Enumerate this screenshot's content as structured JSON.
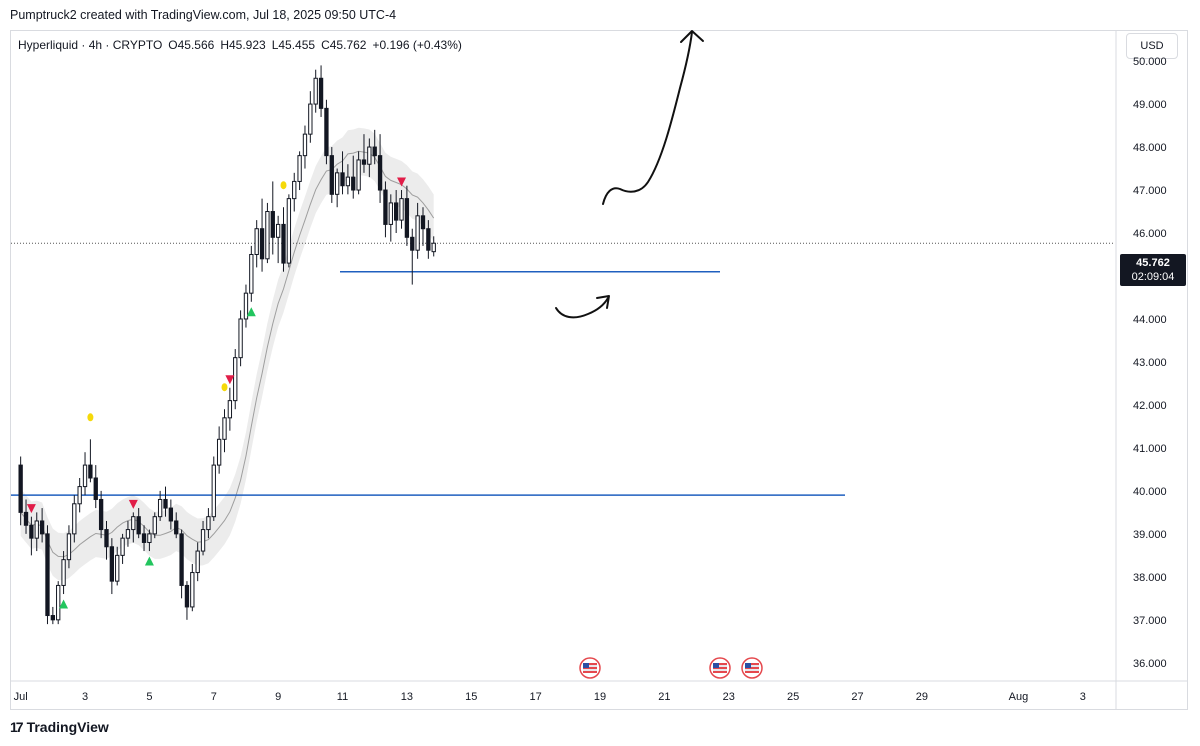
{
  "header": {
    "attribution": "Pumptruck2 created with TradingView.com, Jul 18, 2025 09:50 UTC-4"
  },
  "legend": {
    "symbol": "Hyperliquid · 4h · CRYPTO",
    "open": "O45.566",
    "high": "H45.923",
    "low": "L45.455",
    "close": "C45.762",
    "change": "+0.196 (+0.43%)"
  },
  "currency": "USD",
  "footer": {
    "brand": "TradingView"
  },
  "price_tag": {
    "price": "45.762",
    "countdown": "02:09:04"
  },
  "colors": {
    "candle": "#131722",
    "support_line": "#1f5fbf",
    "up_marker": "#22c55e",
    "down_marker": "#e11d48",
    "yellow_dot": "#f5d90a",
    "band_fill": "#ececec",
    "ma_line": "#9e9e9e"
  },
  "chart_data": {
    "type": "candlestick",
    "timeframe": "4h",
    "ylim": [
      35.6,
      50.7
    ],
    "y_ticks": [
      36,
      37,
      38,
      39,
      40,
      41,
      42,
      43,
      44,
      45,
      46,
      47,
      48,
      49,
      50
    ],
    "y_tick_labels": [
      "36.000",
      "37.000",
      "38.000",
      "39.000",
      "40.000",
      "41.000",
      "42.000",
      "43.000",
      "44.000",
      "45.000",
      "46.000",
      "47.000",
      "48.000",
      "49.000",
      "50.000"
    ],
    "x_tick_labels": [
      "Jul",
      "3",
      "5",
      "7",
      "9",
      "11",
      "13",
      "15",
      "17",
      "19",
      "21",
      "23",
      "25",
      "27",
      "29",
      "Aug",
      "3"
    ],
    "x_tick_days": [
      1,
      3,
      5,
      7,
      9,
      11,
      13,
      15,
      17,
      19,
      21,
      23,
      25,
      27,
      29,
      32,
      34
    ],
    "x_range_days": [
      0.7,
      35
    ],
    "candles": [
      [
        40.6,
        40.8,
        39.2,
        39.5
      ],
      [
        39.5,
        39.8,
        39.0,
        39.2
      ],
      [
        39.2,
        39.4,
        38.5,
        38.9
      ],
      [
        38.9,
        39.5,
        38.6,
        39.3
      ],
      [
        39.3,
        39.6,
        38.8,
        39.0
      ],
      [
        39.0,
        39.2,
        36.9,
        37.1
      ],
      [
        37.1,
        37.3,
        36.9,
        37.0
      ],
      [
        37.0,
        37.9,
        36.9,
        37.8
      ],
      [
        37.8,
        38.6,
        37.6,
        38.4
      ],
      [
        38.4,
        39.2,
        38.2,
        39.0
      ],
      [
        39.0,
        39.9,
        38.8,
        39.7
      ],
      [
        39.7,
        40.3,
        39.5,
        40.1
      ],
      [
        40.1,
        40.9,
        39.9,
        40.6
      ],
      [
        40.6,
        41.2,
        40.2,
        40.3
      ],
      [
        40.3,
        40.6,
        39.6,
        39.8
      ],
      [
        39.8,
        40.0,
        38.9,
        39.1
      ],
      [
        39.1,
        39.3,
        38.4,
        38.7
      ],
      [
        38.7,
        38.9,
        37.6,
        37.9
      ],
      [
        37.9,
        38.7,
        37.8,
        38.5
      ],
      [
        38.5,
        39.0,
        38.3,
        38.9
      ],
      [
        38.9,
        39.3,
        38.7,
        39.1
      ],
      [
        39.1,
        39.5,
        38.8,
        39.4
      ],
      [
        39.4,
        39.6,
        38.9,
        39.0
      ],
      [
        39.0,
        39.2,
        38.6,
        38.8
      ],
      [
        38.8,
        39.1,
        38.6,
        39.0
      ],
      [
        39.0,
        39.5,
        38.9,
        39.4
      ],
      [
        39.4,
        40.0,
        39.3,
        39.8
      ],
      [
        39.8,
        40.1,
        39.4,
        39.6
      ],
      [
        39.6,
        39.8,
        39.1,
        39.3
      ],
      [
        39.3,
        39.5,
        38.9,
        39.0
      ],
      [
        39.0,
        39.1,
        37.5,
        37.8
      ],
      [
        37.8,
        37.9,
        37.0,
        37.3
      ],
      [
        37.3,
        38.3,
        37.2,
        38.1
      ],
      [
        38.1,
        38.8,
        37.9,
        38.6
      ],
      [
        38.6,
        39.3,
        38.5,
        39.1
      ],
      [
        39.1,
        39.6,
        38.9,
        39.4
      ],
      [
        39.4,
        40.8,
        39.3,
        40.6
      ],
      [
        40.6,
        41.5,
        40.4,
        41.2
      ],
      [
        41.2,
        41.9,
        40.9,
        41.7
      ],
      [
        41.7,
        42.4,
        41.4,
        42.1
      ],
      [
        42.1,
        43.3,
        41.9,
        43.1
      ],
      [
        43.1,
        44.2,
        42.9,
        44.0
      ],
      [
        44.0,
        44.8,
        43.8,
        44.6
      ],
      [
        44.6,
        45.7,
        44.4,
        45.5
      ],
      [
        45.5,
        46.3,
        45.2,
        46.1
      ],
      [
        46.1,
        46.8,
        45.1,
        45.4
      ],
      [
        45.4,
        46.7,
        45.3,
        46.5
      ],
      [
        46.5,
        47.2,
        45.5,
        45.9
      ],
      [
        45.9,
        46.4,
        45.3,
        46.2
      ],
      [
        46.2,
        46.6,
        45.1,
        45.3
      ],
      [
        45.3,
        46.9,
        45.2,
        46.8
      ],
      [
        46.8,
        47.4,
        46.5,
        47.2
      ],
      [
        47.2,
        47.9,
        47.0,
        47.8
      ],
      [
        47.8,
        48.5,
        47.5,
        48.3
      ],
      [
        48.3,
        49.3,
        48.1,
        49.0
      ],
      [
        49.0,
        49.8,
        48.8,
        49.6
      ],
      [
        49.6,
        49.9,
        48.7,
        48.9
      ],
      [
        48.9,
        49.1,
        47.6,
        47.8
      ],
      [
        47.8,
        48.0,
        46.7,
        46.9
      ],
      [
        46.9,
        47.5,
        46.6,
        47.4
      ],
      [
        47.4,
        47.9,
        46.9,
        47.1
      ],
      [
        47.1,
        47.6,
        46.9,
        47.3
      ],
      [
        47.3,
        47.8,
        46.8,
        47.0
      ],
      [
        47.0,
        47.9,
        46.9,
        47.7
      ],
      [
        47.7,
        48.3,
        47.4,
        47.6
      ],
      [
        47.6,
        48.2,
        47.3,
        48.0
      ],
      [
        48.0,
        48.4,
        47.6,
        47.8
      ],
      [
        47.8,
        48.3,
        46.7,
        47.0
      ],
      [
        47.0,
        47.2,
        45.9,
        46.2
      ],
      [
        46.2,
        46.9,
        45.8,
        46.7
      ],
      [
        46.7,
        47.0,
        46.0,
        46.3
      ],
      [
        46.3,
        47.0,
        46.1,
        46.8
      ],
      [
        46.8,
        47.1,
        45.7,
        45.9
      ],
      [
        45.9,
        46.1,
        44.8,
        45.6
      ],
      [
        45.6,
        46.7,
        45.4,
        46.4
      ],
      [
        46.4,
        46.6,
        45.7,
        46.1
      ],
      [
        46.1,
        46.3,
        45.4,
        45.6
      ],
      [
        45.566,
        45.923,
        45.455,
        45.762
      ]
    ],
    "support_levels": [
      45.1,
      39.9
    ],
    "current_price": 45.762
  }
}
